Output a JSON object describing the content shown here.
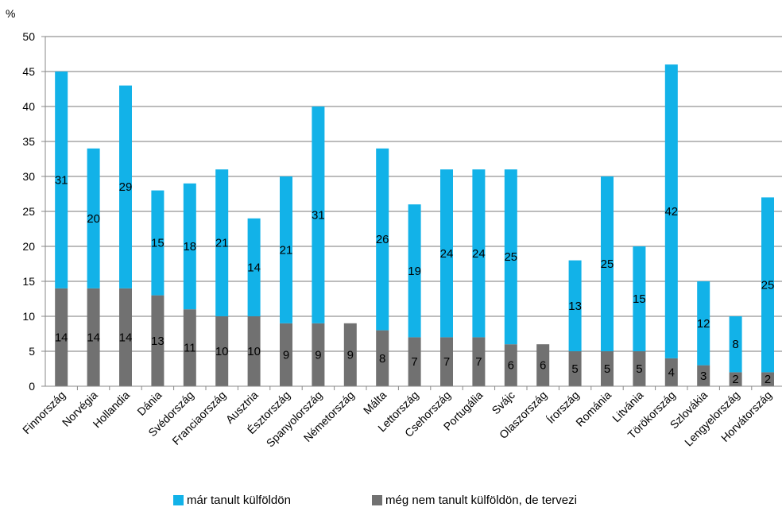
{
  "chart_data": {
    "type": "bar",
    "stacked": true,
    "unit": "%",
    "ylim": [
      0,
      50
    ],
    "yticks": [
      0,
      5,
      10,
      15,
      20,
      25,
      30,
      35,
      40,
      45,
      50
    ],
    "grid": true,
    "legend_position": "bottom",
    "categories": [
      "Finnország",
      "Norvégia",
      "Hollandia",
      "Dánia",
      "Svédország",
      "Franciaország",
      "Ausztria",
      "Észtország",
      "Spanyolország",
      "Németország",
      "Málta",
      "Lettország",
      "Csehország",
      "Portugália",
      "Svájc",
      "Olaszország",
      "Írország",
      "Románia",
      "Litvánia",
      "Törökország",
      "Szlovákia",
      "Lengyelország",
      "Horvátország"
    ],
    "series": [
      {
        "name": "még nem tanult külföldön, de tervezi",
        "color": "#717171",
        "values": [
          14,
          14,
          14,
          13,
          11,
          10,
          10,
          9,
          9,
          9,
          8,
          7,
          7,
          7,
          6,
          6,
          5,
          5,
          5,
          4,
          3,
          2,
          2
        ]
      },
      {
        "name": "már tanult külföldön",
        "color": "#12B2E8",
        "values": [
          31,
          20,
          29,
          15,
          18,
          21,
          14,
          21,
          31,
          null,
          26,
          19,
          24,
          24,
          25,
          null,
          13,
          25,
          15,
          42,
          12,
          8,
          25
        ]
      }
    ]
  }
}
